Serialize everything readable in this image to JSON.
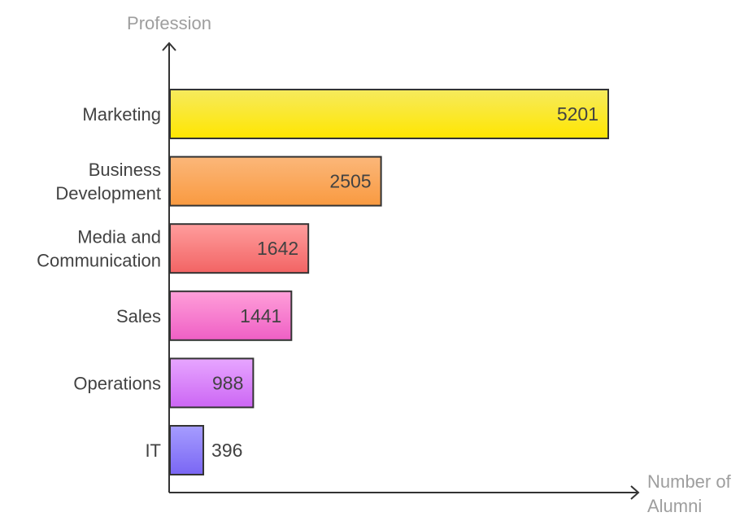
{
  "chart_data": {
    "type": "bar",
    "orientation": "horizontal",
    "title": "",
    "ylabel": "Profession",
    "xlabel": "Number of Alumni",
    "xlabel_lines": [
      "Number of",
      "Alumni"
    ],
    "categories": [
      "Marketing",
      "Business Development",
      "Media and Communication",
      "Sales",
      "Operations",
      "IT"
    ],
    "category_lines": [
      [
        "Marketing"
      ],
      [
        "Business",
        "Development"
      ],
      [
        "Media and",
        "Communication"
      ],
      [
        "Sales"
      ],
      [
        "Operations"
      ],
      [
        "IT"
      ]
    ],
    "values": [
      5201,
      2505,
      1642,
      1441,
      988,
      396
    ],
    "xlim": [
      0,
      5201
    ],
    "grid": false,
    "legend": "none",
    "colors": [
      {
        "top": "#f6ea5e",
        "bottom": "#ffe600"
      },
      {
        "top": "#fbb77a",
        "bottom": "#f99a40"
      },
      {
        "top": "#ff9d9d",
        "bottom": "#f26464"
      },
      {
        "top": "#ff9fd9",
        "bottom": "#ef5fc5"
      },
      {
        "top": "#e7a6ff",
        "bottom": "#cc66f4"
      },
      {
        "top": "#a69dff",
        "bottom": "#7a66f4"
      }
    ],
    "axis_color": "#333333",
    "bar_stroke": "#333333"
  }
}
